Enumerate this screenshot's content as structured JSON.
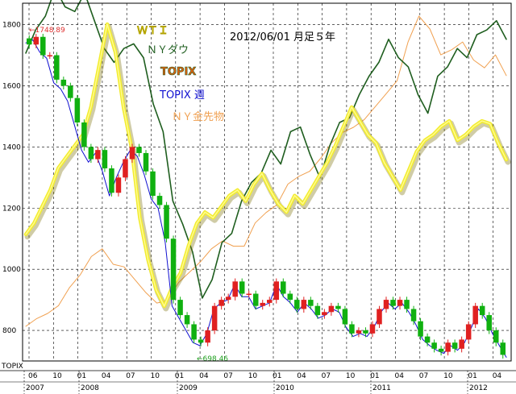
{
  "chart_data": {
    "type": "line",
    "title": "2012/06/01  月足５年",
    "ylabel": "TOPIX",
    "ylim": [
      700,
      1870
    ],
    "yticks": [
      800,
      1000,
      1200,
      1400,
      1600,
      1800
    ],
    "x_axis": {
      "month_labels": [
        "06",
        "10",
        "01",
        "04",
        "07",
        "10",
        "01",
        "04",
        "07",
        "10",
        "01",
        "04",
        "07",
        "10",
        "01",
        "04",
        "07",
        "10",
        "01",
        "04"
      ],
      "year_labels": [
        "2007",
        "2008",
        "2009",
        "2010",
        "2011",
        "2012"
      ]
    },
    "annotations": {
      "high": "←1748.89",
      "low": "←698.46"
    },
    "legend": [
      {
        "label": "ＷＴＩ",
        "color": "#e8e020"
      },
      {
        "label": "ＮＹダウ",
        "color": "#1f5e1f"
      },
      {
        "label": "TOPIX",
        "color": "#e06010"
      },
      {
        "label": "TOPIX 週",
        "color": "#1010d0"
      },
      {
        "label": "ＮＹ金先物",
        "color": "#f0a050"
      }
    ],
    "series": [
      {
        "name": "TOPIX",
        "type": "candlestick",
        "values": [
          1735,
          1760,
          1700,
          1700,
          1620,
          1600,
          1560,
          1480,
          1400,
          1360,
          1390,
          1330,
          1250,
          1300,
          1360,
          1400,
          1380,
          1320,
          1240,
          1210,
          1100,
          900,
          850,
          820,
          770,
          760,
          800,
          880,
          900,
          910,
          960,
          920,
          920,
          880,
          890,
          900,
          960,
          920,
          900,
          870,
          900,
          880,
          850,
          860,
          880,
          870,
          820,
          790,
          800,
          790,
          820,
          870,
          900,
          880,
          900,
          870,
          830,
          780,
          760,
          740,
          730,
          760,
          740,
          770,
          820,
          880,
          850,
          800,
          760,
          720
        ]
      },
      {
        "name": "TOPIX 週",
        "type": "line",
        "values": [
          1740,
          1750,
          1710,
          1690,
          1610,
          1590,
          1550,
          1470,
          1390,
          1350,
          1380,
          1320,
          1240,
          1300,
          1350,
          1390,
          1370,
          1310,
          1230,
          1200,
          1090,
          880,
          840,
          800,
          760,
          750,
          790,
          870,
          890,
          900,
          950,
          910,
          910,
          870,
          880,
          890,
          950,
          910,
          890,
          860,
          890,
          870,
          840,
          850,
          870,
          860,
          810,
          780,
          790,
          780,
          810,
          860,
          890,
          870,
          890,
          860,
          820,
          770,
          750,
          735,
          725,
          750,
          735,
          760,
          810,
          870,
          840,
          790,
          750,
          712
        ]
      },
      {
        "name": "ＮＹダウ",
        "type": "line",
        "values": [
          12500,
          13000,
          13300,
          13900,
          13500,
          13400,
          13800,
          13200,
          12600,
          12300,
          12600,
          12700,
          12400,
          11400,
          10800,
          9300,
          8800,
          8200,
          7200,
          7600,
          8400,
          8600,
          9300,
          9700,
          9900,
          10400,
          10100,
          10800,
          10900,
          10300,
          9800,
          10500,
          11000,
          11100,
          11600,
          12000,
          12300,
          12800,
          12400,
          12200,
          11600,
          11200,
          12000,
          12200,
          12600,
          12400,
          12900,
          13000,
          13200,
          12800
        ]
      },
      {
        "name": "ＷＴＩ",
        "type": "line",
        "values": [
          64,
          68,
          74,
          80,
          88,
          92,
          96,
          100,
          110,
          125,
          140,
          130,
          110,
          95,
          70,
          55,
          44,
          38,
          45,
          50,
          60,
          68,
          72,
          70,
          74,
          78,
          80,
          76,
          82,
          86,
          80,
          75,
          72,
          78,
          75,
          80,
          85,
          90,
          96,
          103,
          110,
          105,
          100,
          97,
          90,
          85,
          80,
          87,
          94,
          98,
          100,
          103,
          105,
          98,
          100,
          103,
          105,
          104,
          97,
          91
        ]
      },
      {
        "name": "ＮＹ金先物",
        "type": "line",
        "values": [
          650,
          680,
          700,
          730,
          800,
          850,
          920,
          950,
          890,
          880,
          830,
          780,
          740,
          750,
          820,
          860,
          900,
          950,
          980,
          960,
          960,
          1050,
          1090,
          1120,
          1200,
          1230,
          1250,
          1300,
          1360,
          1400,
          1420,
          1450,
          1500,
          1550,
          1600,
          1750,
          1850,
          1800,
          1700,
          1720,
          1750,
          1680,
          1650,
          1700,
          1620
        ]
      }
    ]
  }
}
